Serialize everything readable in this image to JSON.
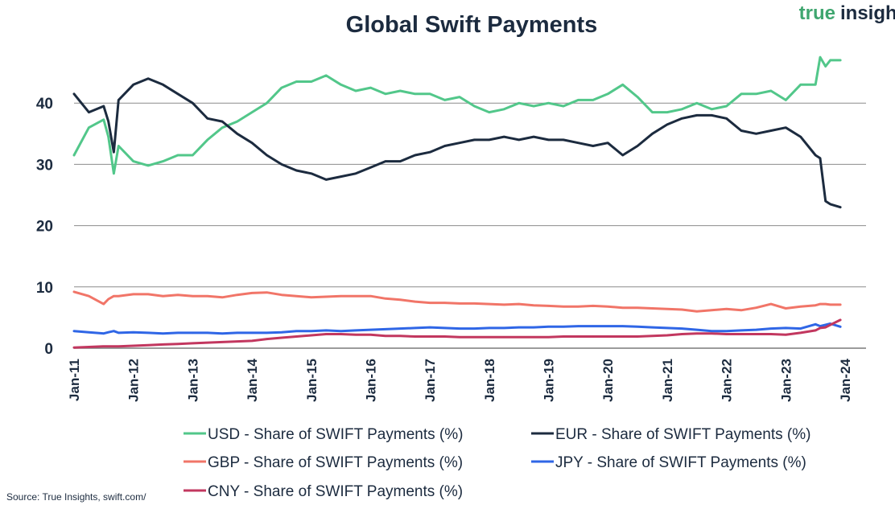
{
  "brand": {
    "part1": "true",
    "part2": "insights",
    "color1": "#3fa66f",
    "color2": "#1c2b3f"
  },
  "source": "Source: True Insights, swift.com/",
  "chart_data": {
    "type": "line",
    "title": "Global Swift Payments",
    "xlabel": "",
    "ylabel": "",
    "ylim": [
      0,
      50
    ],
    "yticks": [
      0,
      10,
      20,
      30,
      40
    ],
    "grid": true,
    "legend_position": "bottom",
    "x_tick_labels": [
      "Jan-11",
      "Jan-12",
      "Jan-13",
      "Jan-14",
      "Jan-15",
      "Jan-16",
      "Jan-17",
      "Jan-18",
      "Jan-19",
      "Jan-20",
      "Jan-21",
      "Jan-22",
      "Jan-23",
      "Jan-24"
    ],
    "x": [
      2011.0,
      2011.25,
      2011.5,
      2011.58,
      2011.67,
      2011.75,
      2012.0,
      2012.25,
      2012.5,
      2012.75,
      2013.0,
      2013.25,
      2013.5,
      2013.75,
      2014.0,
      2014.25,
      2014.5,
      2014.75,
      2015.0,
      2015.25,
      2015.5,
      2015.75,
      2016.0,
      2016.25,
      2016.5,
      2016.75,
      2017.0,
      2017.25,
      2017.5,
      2017.75,
      2018.0,
      2018.25,
      2018.5,
      2018.75,
      2019.0,
      2019.25,
      2019.5,
      2019.75,
      2020.0,
      2020.25,
      2020.5,
      2020.75,
      2021.0,
      2021.25,
      2021.5,
      2021.75,
      2022.0,
      2022.25,
      2022.5,
      2022.75,
      2023.0,
      2023.25,
      2023.5,
      2023.58,
      2023.67,
      2023.75,
      2023.92
    ],
    "series": [
      {
        "name": "USD - Share of SWIFT Payments (%)",
        "color": "#52c78a",
        "values": [
          31.5,
          36.0,
          37.3,
          34.5,
          28.5,
          33.0,
          30.5,
          29.8,
          30.5,
          31.5,
          31.5,
          34.0,
          36.0,
          37.0,
          38.5,
          40.0,
          42.5,
          43.5,
          43.5,
          44.5,
          43.0,
          42.0,
          42.5,
          41.5,
          42.0,
          41.5,
          41.5,
          40.5,
          41.0,
          39.5,
          38.5,
          39.0,
          40.0,
          39.5,
          40.0,
          39.5,
          40.5,
          40.5,
          41.5,
          43.0,
          41.0,
          38.5,
          38.5,
          39.0,
          40.0,
          39.0,
          39.5,
          41.5,
          41.5,
          42.0,
          40.5,
          43.0,
          43.0,
          47.5,
          46.0,
          47.0,
          47.0
        ]
      },
      {
        "name": "EUR - Share of SWIFT Payments (%)",
        "color": "#1c2b3f",
        "values": [
          41.5,
          38.5,
          39.5,
          37.0,
          32.0,
          40.5,
          43.0,
          44.0,
          43.0,
          41.5,
          40.0,
          37.5,
          37.0,
          35.0,
          33.5,
          31.5,
          30.0,
          29.0,
          28.5,
          27.5,
          28.0,
          28.5,
          29.5,
          30.5,
          30.5,
          31.5,
          32.0,
          33.0,
          33.5,
          34.0,
          34.0,
          34.5,
          34.0,
          34.5,
          34.0,
          34.0,
          33.5,
          33.0,
          33.5,
          31.5,
          33.0,
          35.0,
          36.5,
          37.5,
          38.0,
          38.0,
          37.5,
          35.5,
          35.0,
          35.5,
          36.0,
          34.5,
          31.5,
          31.0,
          24.0,
          23.5,
          23.0
        ]
      },
      {
        "name": "GBP - Share of SWIFT Payments (%)",
        "color": "#f17568",
        "values": [
          9.2,
          8.5,
          7.2,
          8.0,
          8.5,
          8.5,
          8.8,
          8.8,
          8.5,
          8.7,
          8.5,
          8.5,
          8.3,
          8.7,
          9.0,
          9.1,
          8.7,
          8.5,
          8.3,
          8.4,
          8.5,
          8.5,
          8.5,
          8.1,
          7.9,
          7.6,
          7.4,
          7.4,
          7.3,
          7.3,
          7.2,
          7.1,
          7.2,
          7.0,
          6.9,
          6.8,
          6.8,
          6.9,
          6.8,
          6.6,
          6.6,
          6.5,
          6.4,
          6.3,
          6.0,
          6.2,
          6.4,
          6.2,
          6.6,
          7.2,
          6.5,
          6.8,
          7.0,
          7.2,
          7.2,
          7.1,
          7.1
        ]
      },
      {
        "name": "JPY - Share of SWIFT Payments (%)",
        "color": "#2f66e6",
        "values": [
          2.8,
          2.6,
          2.4,
          2.6,
          2.8,
          2.5,
          2.6,
          2.5,
          2.4,
          2.5,
          2.5,
          2.5,
          2.4,
          2.5,
          2.5,
          2.5,
          2.6,
          2.8,
          2.8,
          2.9,
          2.8,
          2.9,
          3.0,
          3.1,
          3.2,
          3.3,
          3.4,
          3.3,
          3.2,
          3.2,
          3.3,
          3.3,
          3.4,
          3.4,
          3.5,
          3.5,
          3.6,
          3.6,
          3.6,
          3.6,
          3.5,
          3.4,
          3.3,
          3.2,
          3.0,
          2.8,
          2.8,
          2.9,
          3.0,
          3.2,
          3.3,
          3.2,
          3.9,
          3.6,
          3.8,
          4.0,
          3.5
        ]
      },
      {
        "name": "CNY - Share of SWIFT Payments (%)",
        "color": "#c2375f",
        "values": [
          0.1,
          0.2,
          0.3,
          0.3,
          0.3,
          0.3,
          0.4,
          0.5,
          0.6,
          0.7,
          0.8,
          0.9,
          1.0,
          1.1,
          1.2,
          1.5,
          1.7,
          1.9,
          2.1,
          2.3,
          2.3,
          2.2,
          2.2,
          2.0,
          2.0,
          1.9,
          1.9,
          1.9,
          1.8,
          1.8,
          1.8,
          1.8,
          1.8,
          1.8,
          1.8,
          1.9,
          1.9,
          1.9,
          1.9,
          1.9,
          1.9,
          2.0,
          2.1,
          2.3,
          2.4,
          2.4,
          2.3,
          2.3,
          2.3,
          2.3,
          2.2,
          2.5,
          2.9,
          3.3,
          3.4,
          3.8,
          4.6
        ]
      }
    ]
  }
}
